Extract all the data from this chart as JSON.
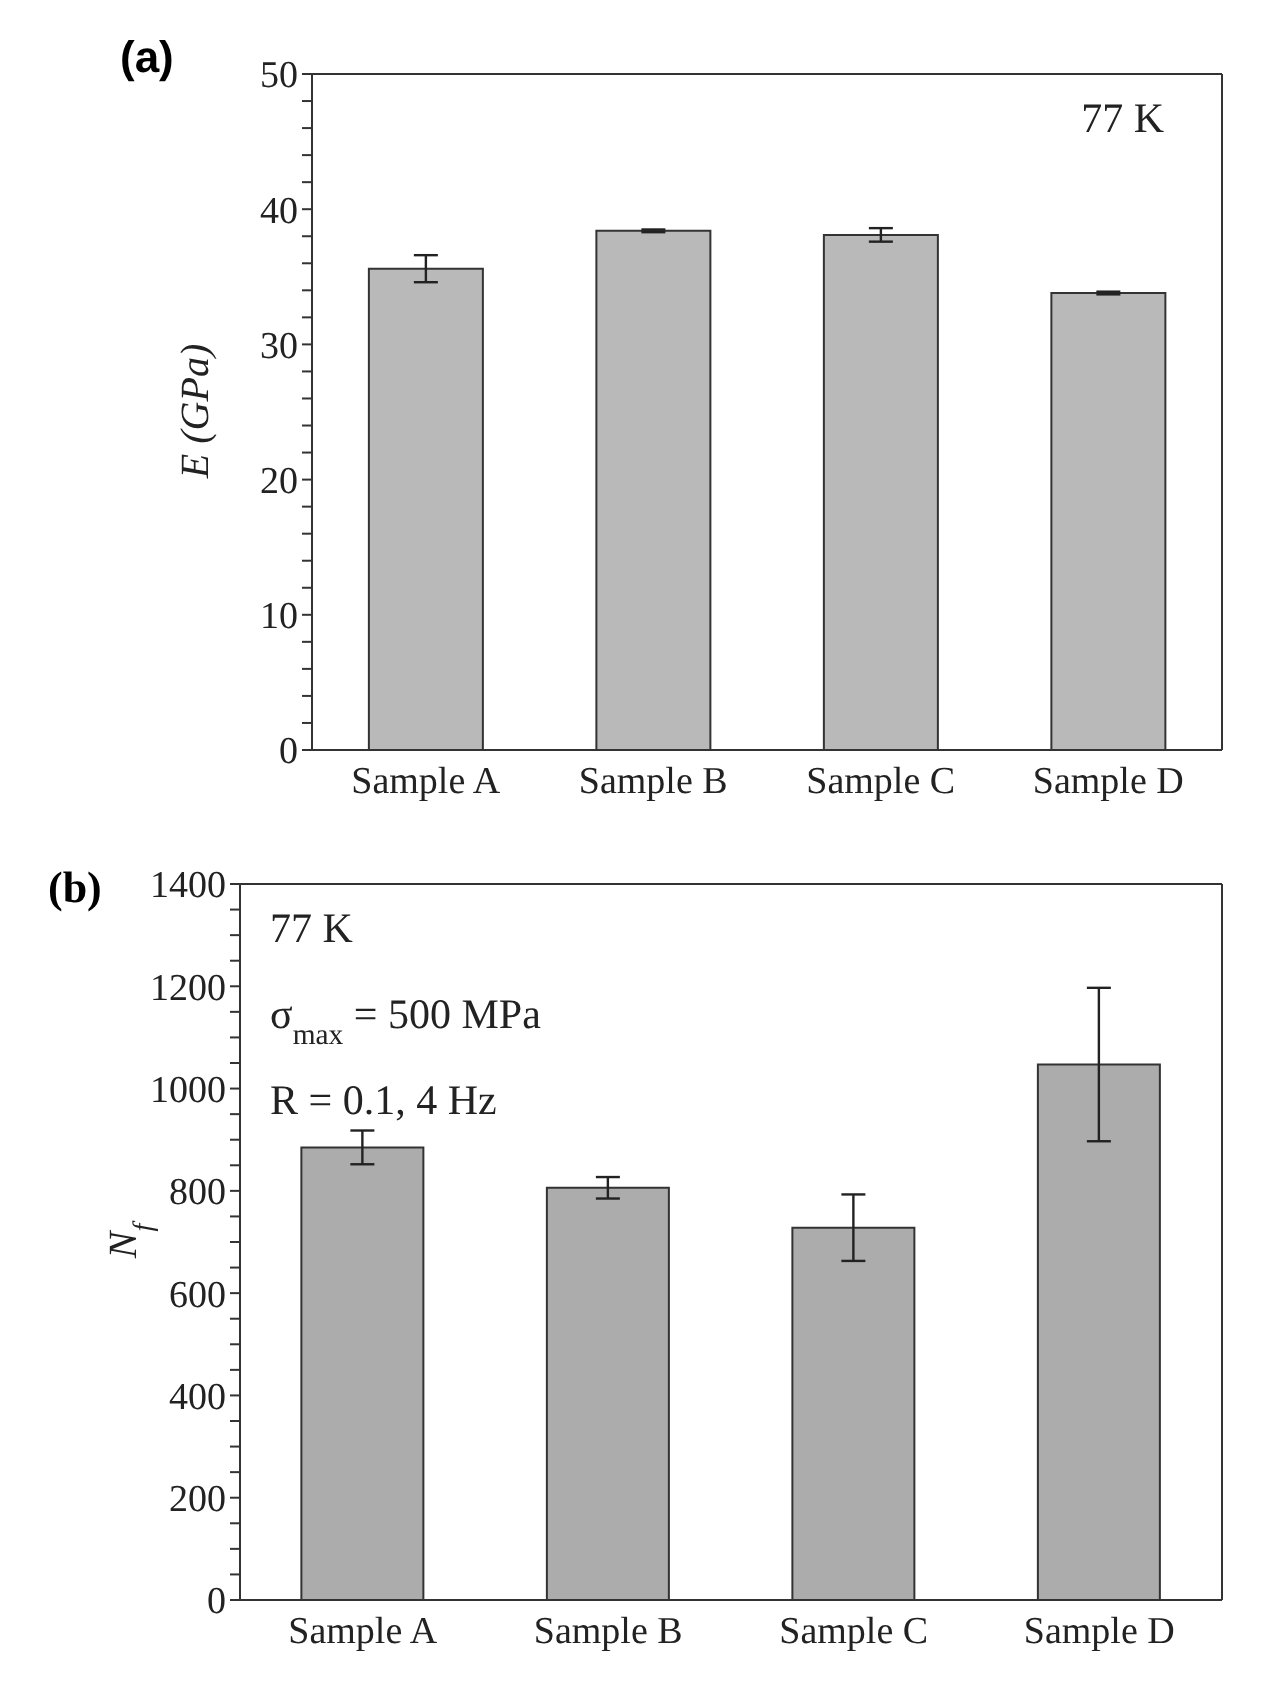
{
  "chart_data": [
    {
      "type": "bar",
      "title": "(a)",
      "ylabel": "E (GPa)",
      "categories": [
        "Sample A",
        "Sample B",
        "Sample C",
        "Sample D"
      ],
      "values": [
        35.6,
        38.4,
        38.1,
        33.8
      ],
      "errors": [
        1.0,
        0.1,
        0.5,
        0.1
      ],
      "color": "#b9b9b9",
      "ylim": [
        0,
        50
      ],
      "yticks": [
        0,
        {
          "value": 2,
          "label": null
        },
        {
          "value": 4,
          "label": null
        },
        {
          "value": 6,
          "label": null
        },
        {
          "value": 8,
          "label": null
        },
        10,
        {
          "value": 12,
          "label": null
        },
        {
          "value": 14,
          "label": null
        },
        {
          "value": 16,
          "label": null
        },
        {
          "value": 18,
          "label": null
        },
        20,
        {
          "value": 22,
          "label": null
        },
        {
          "value": 24,
          "label": null
        },
        {
          "value": 26,
          "label": null
        },
        {
          "value": 28,
          "label": null
        },
        30,
        {
          "value": 32,
          "label": null
        },
        {
          "value": 34,
          "label": null
        },
        {
          "value": 36,
          "label": null
        },
        {
          "value": 38,
          "label": null
        },
        40,
        {
          "value": 42,
          "label": null
        },
        {
          "value": 44,
          "label": null
        },
        {
          "value": 46,
          "label": null
        },
        {
          "value": 48,
          "label": null
        },
        50
      ],
      "annotations": [
        "77 K"
      ],
      "grid": false,
      "legend": false
    },
    {
      "type": "bar",
      "title": "(b)",
      "ylabel": "N$_{f}$",
      "categories": [
        "Sample A",
        "Sample B",
        "Sample C",
        "Sample D"
      ],
      "values": [
        885,
        806,
        728,
        1047
      ],
      "errors": [
        33,
        21,
        65,
        150
      ],
      "color": "#acacac",
      "ylim": [
        0,
        1400
      ],
      "yticks": [
        0,
        {
          "value": 50,
          "label": null
        },
        {
          "value": 100,
          "label": null
        },
        {
          "value": 150,
          "label": null
        },
        200,
        {
          "value": 250,
          "label": null
        },
        {
          "value": 300,
          "label": null
        },
        {
          "value": 350,
          "label": null
        },
        400,
        {
          "value": 450,
          "label": null
        },
        {
          "value": 500,
          "label": null
        },
        {
          "value": 550,
          "label": null
        },
        600,
        {
          "value": 650,
          "label": null
        },
        {
          "value": 700,
          "label": null
        },
        {
          "value": 750,
          "label": null
        },
        800,
        {
          "value": 850,
          "label": null
        },
        {
          "value": 900,
          "label": null
        },
        {
          "value": 950,
          "label": null
        },
        1000,
        {
          "value": 1050,
          "label": null
        },
        {
          "value": 1100,
          "label": null
        },
        {
          "value": 1150,
          "label": null
        },
        1200,
        {
          "value": 1250,
          "label": null
        },
        {
          "value": 1300,
          "label": null
        },
        {
          "value": 1350,
          "label": null
        },
        1400
      ],
      "annotations": [
        "77 K",
        "σ$_{max}$ = 500 MPa",
        "R = 0.1, 4 Hz"
      ],
      "grid": false,
      "legend": false
    }
  ]
}
